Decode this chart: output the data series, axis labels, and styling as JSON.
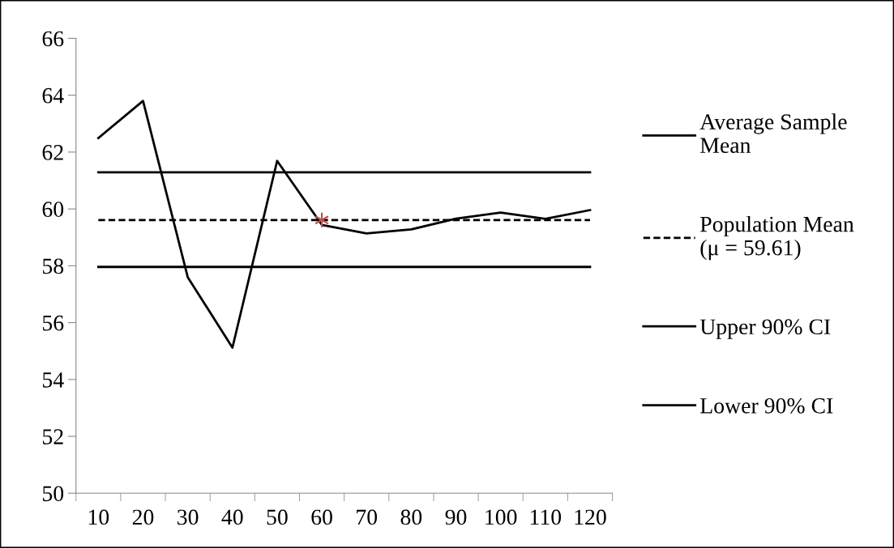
{
  "chart_data": {
    "type": "line",
    "categories": [
      "10",
      "20",
      "30",
      "40",
      "50",
      "60",
      "70",
      "80",
      "90",
      "100",
      "110",
      "120"
    ],
    "series": [
      {
        "name": "Average Sample Mean",
        "color": "#000000",
        "line_style": "solid",
        "values": [
          62.49,
          63.8,
          57.6,
          55.12,
          61.69,
          59.44,
          59.14,
          59.28,
          59.66,
          59.87,
          59.65,
          59.96
        ]
      },
      {
        "name": "Population Mean (μ = 59.61)",
        "color": "#000000",
        "line_style": "dashed",
        "values": [
          59.61,
          59.61,
          59.61,
          59.61,
          59.61,
          59.61,
          59.61,
          59.61,
          59.61,
          59.61,
          59.61,
          59.61
        ]
      },
      {
        "name": "Upper 90% CI",
        "color": "#000000",
        "line_style": "solid",
        "values": [
          61.29,
          61.29,
          61.29,
          61.29,
          61.29,
          61.29,
          61.29,
          61.29,
          61.29,
          61.29,
          61.29,
          61.29
        ]
      },
      {
        "name": "Lower 90% CI",
        "color": "#000000",
        "line_style": "solid",
        "values": [
          57.96,
          57.96,
          57.96,
          57.96,
          57.96,
          57.96,
          57.96,
          57.96,
          57.96,
          57.96,
          57.96,
          57.96
        ]
      },
      {
        "type": "scatter",
        "color": "#c0504d",
        "marker": "cross",
        "x": [
          "60"
        ],
        "values": [
          59.61
        ]
      }
    ],
    "ylim": [
      50,
      66
    ],
    "yticks": [
      50,
      52,
      54,
      56,
      58,
      60,
      62,
      64,
      66
    ],
    "grid": false,
    "legend": "right"
  }
}
